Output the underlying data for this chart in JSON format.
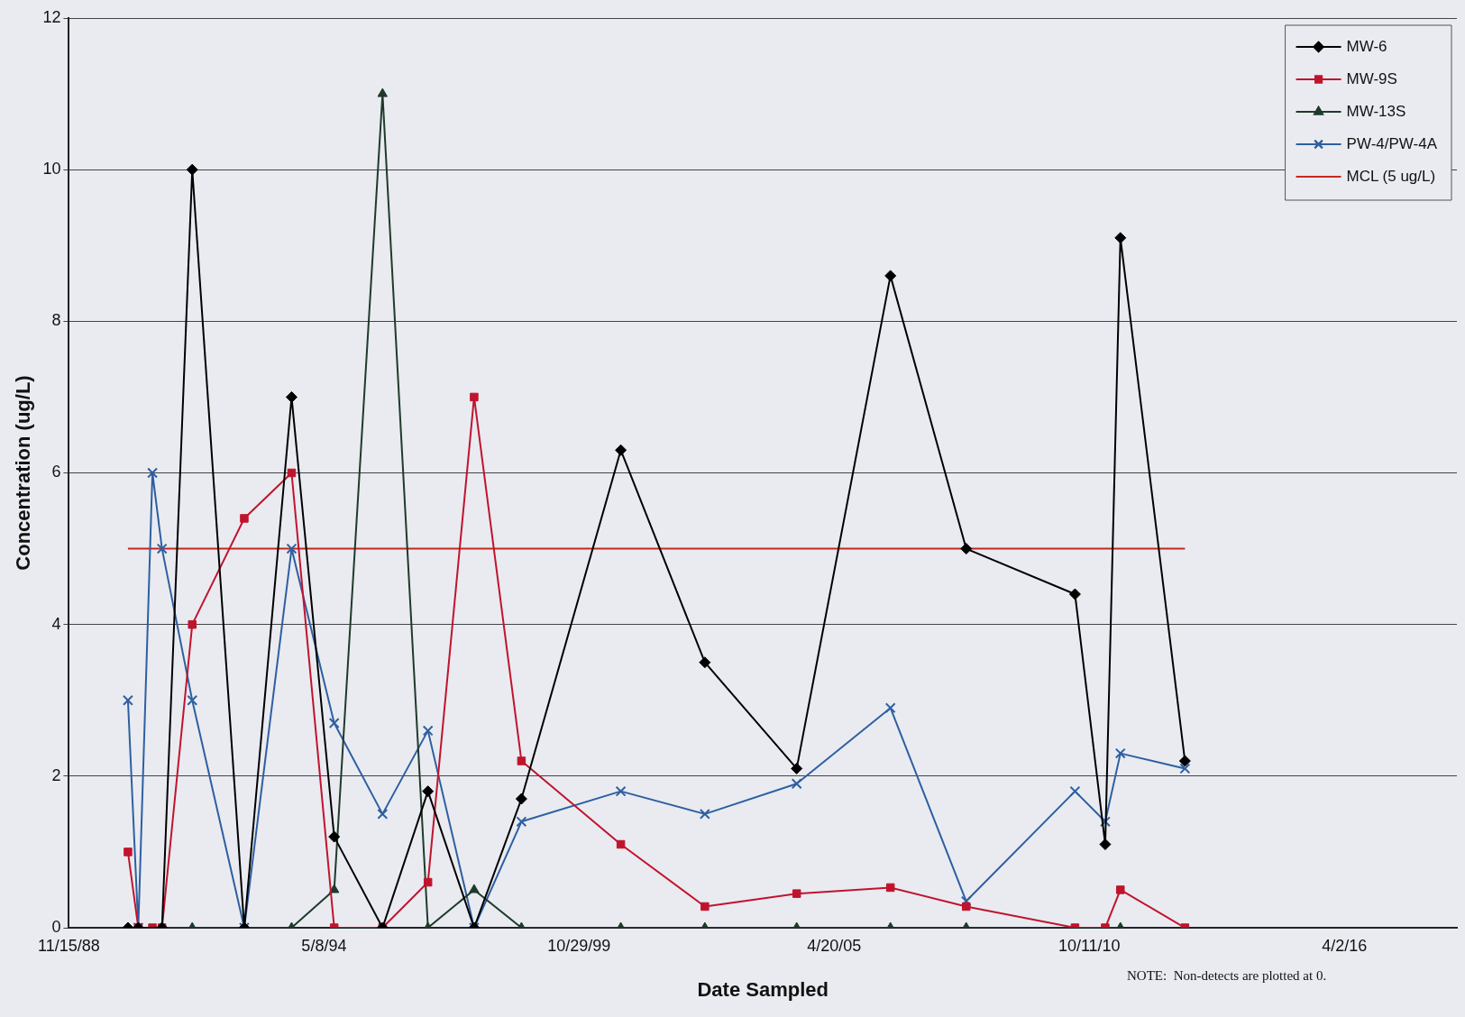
{
  "chart_data": {
    "type": "line",
    "xlabel": "Date Sampled",
    "ylabel": "Concentration (ug/L)",
    "xlim": [
      "1988-11-15",
      "2018-09-01"
    ],
    "xticks": [
      {
        "value": "1988-11-15",
        "label": "11/15/88"
      },
      {
        "value": "1994-05-08",
        "label": "5/8/94"
      },
      {
        "value": "1999-10-29",
        "label": "10/29/99"
      },
      {
        "value": "2005-04-20",
        "label": "4/20/05"
      },
      {
        "value": "2010-10-11",
        "label": "10/11/10"
      },
      {
        "value": "2016-04-02",
        "label": "4/2/16"
      }
    ],
    "ylim": [
      0,
      12
    ],
    "yticks": [
      0,
      2,
      4,
      6,
      8,
      10,
      12
    ],
    "grid": "y",
    "legend": "top right",
    "line_style": "solid",
    "series": [
      {
        "name": "MW-6",
        "color": "#000000",
        "marker": "diamond",
        "x": [
          "1990-02-21",
          "1990-05-13",
          "1990-11-15",
          "1991-07-10",
          "1992-08-21",
          "1993-08-27",
          "1994-07-27",
          "1995-08-10",
          "1996-07-31",
          "1997-07-28",
          "1998-08-03",
          "2000-09-20",
          "2002-07-11",
          "2004-06-30",
          "2006-07-05",
          "2008-02-19",
          "2010-06-21",
          "2011-02-13",
          "2011-06-12",
          "2012-10-30"
        ],
        "values": [
          0,
          0,
          0,
          10,
          0,
          7,
          1.2,
          0,
          1.8,
          0,
          1.7,
          6.3,
          3.5,
          2.1,
          8.6,
          5.0,
          4.4,
          1.1,
          9.1,
          2.2
        ]
      },
      {
        "name": "MW-9S",
        "color": "#c0142c",
        "marker": "square",
        "x": [
          "1990-02-21",
          "1990-05-13",
          "1990-09-01",
          "1990-11-15",
          "1991-07-10",
          "1992-08-21",
          "1993-08-27",
          "1994-07-27",
          "1995-08-10",
          "1996-07-31",
          "1997-07-28",
          "1998-08-03",
          "2000-09-20",
          "2002-07-11",
          "2004-06-30",
          "2006-07-05",
          "2008-02-19",
          "2010-06-21",
          "2011-02-13",
          "2011-06-12",
          "2012-10-30"
        ],
        "values": [
          1,
          0,
          0,
          0,
          4,
          5.4,
          6,
          0,
          0,
          0.6,
          7,
          2.2,
          1.1,
          0.28,
          0.45,
          0.53,
          0.28,
          0,
          0,
          0.5,
          0
        ]
      },
      {
        "name": "MW-13S",
        "color": "#1f3a2a",
        "marker": "triangle",
        "x": [
          "1990-02-21",
          "1990-05-13",
          "1990-11-15",
          "1991-07-10",
          "1992-08-21",
          "1993-08-27",
          "1994-07-27",
          "1995-08-10",
          "1996-07-31",
          "1997-07-28",
          "1998-08-03",
          "2000-09-20",
          "2002-07-11",
          "2004-06-30",
          "2006-07-05",
          "2008-02-19",
          "2011-06-12"
        ],
        "values": [
          0,
          0,
          0,
          0,
          0,
          0,
          0.5,
          11,
          0,
          0.5,
          0,
          0,
          0,
          0,
          0,
          0,
          0
        ]
      },
      {
        "name": "PW-4/PW-4A",
        "color": "#2e5fa0",
        "marker": "cross",
        "x": [
          "1990-02-21",
          "1990-05-13",
          "1990-09-01",
          "1990-11-15",
          "1991-07-10",
          "1992-08-21",
          "1993-08-27",
          "1994-07-27",
          "1995-08-10",
          "1996-07-31",
          "1997-07-28",
          "1998-08-03",
          "2000-09-20",
          "2002-07-11",
          "2004-06-30",
          "2006-07-05",
          "2008-02-19",
          "2010-06-21",
          "2011-02-13",
          "2011-06-12",
          "2012-10-30"
        ],
        "values": [
          3,
          0,
          6,
          5,
          3,
          0,
          5,
          2.7,
          1.5,
          2.6,
          0,
          1.4,
          1.8,
          1.5,
          1.9,
          2.9,
          0.35,
          1.8,
          1.4,
          2.3,
          2.1
        ]
      },
      {
        "name": "MCL (5 ug/L)",
        "color": "#c8281e",
        "marker": "none",
        "x": [
          "1990-02-21",
          "2012-10-30"
        ],
        "values": [
          5,
          5
        ]
      }
    ],
    "annotations": [
      "NOTE:  Non-detects are plotted at 0."
    ]
  }
}
